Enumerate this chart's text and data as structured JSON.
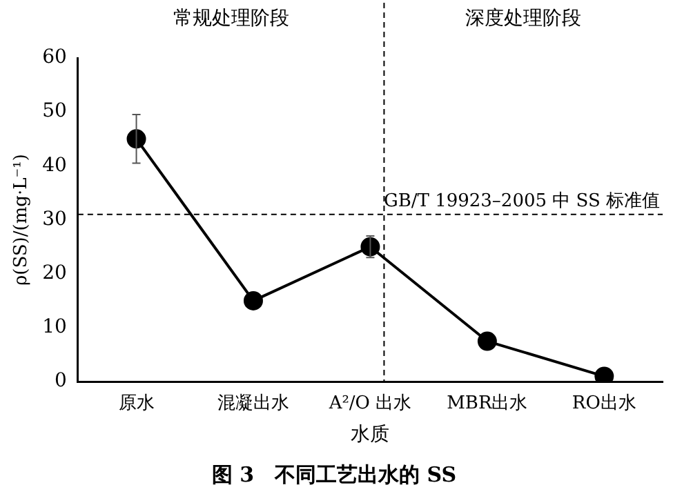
{
  "chart_data": {
    "type": "line",
    "title": "图 3　不同工艺出水的 SS",
    "xlabel": "水质",
    "ylabel": "ρ(SS)/(mg·L⁻¹)",
    "categories": [
      "原水",
      "混凝出水",
      "A²/O 出水",
      "MBR出水",
      "RO出水"
    ],
    "series": [
      {
        "color": "#000000",
        "values": [
          45,
          15,
          25,
          7.5,
          1
        ],
        "errors": [
          4.5,
          null,
          2,
          null,
          null
        ]
      }
    ],
    "ylim": [
      0,
      60
    ],
    "yticks": [
      0,
      10,
      20,
      30,
      40,
      50,
      60
    ],
    "grid": false,
    "legend": false,
    "marker": "circle",
    "line_style": "solid",
    "ref_lines": [
      {
        "axis": "y",
        "value": 31,
        "label": "GB/T 19923–2005 中 SS 标准值",
        "line_style": "dashed"
      },
      {
        "axis": "x",
        "value": "A²/O 出水",
        "line_style": "dashed"
      }
    ],
    "annotations": [
      "常规处理阶段",
      "深度处理阶段"
    ]
  }
}
